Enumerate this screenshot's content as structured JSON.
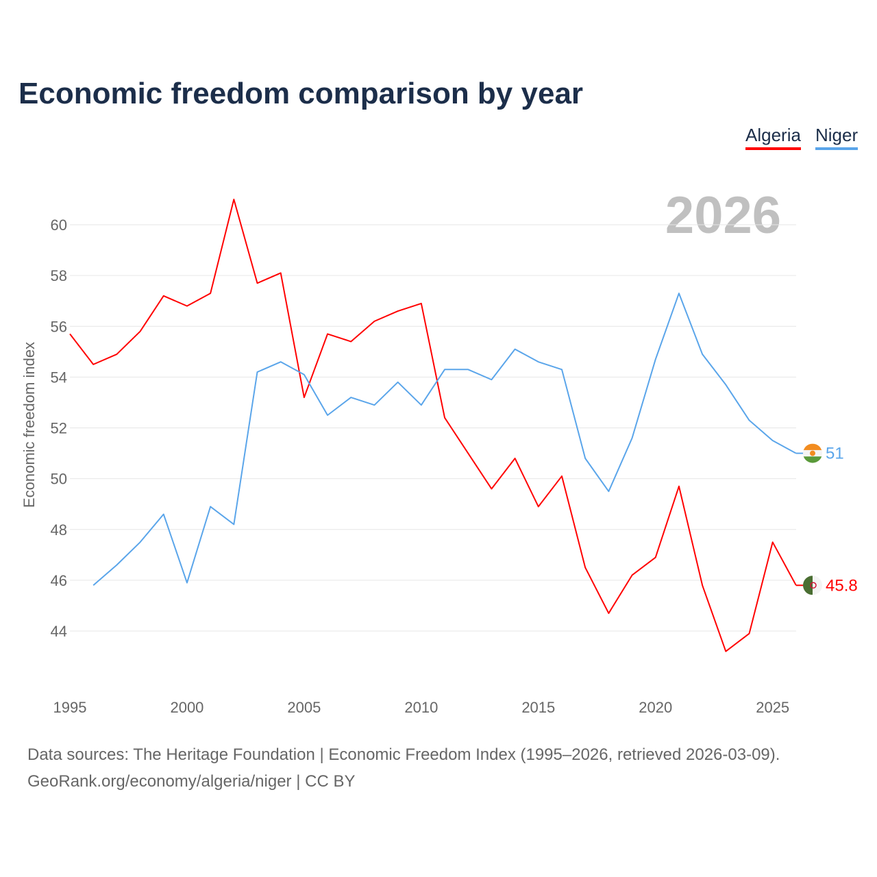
{
  "title": "Economic freedom comparison by year",
  "legend": [
    {
      "name": "Algeria",
      "color": "#ff0000"
    },
    {
      "name": "Niger",
      "color": "#5aa5ea"
    }
  ],
  "year_label": "2026",
  "source_line1": "Data sources: The Heritage Foundation | Economic Freedom Index (1995–2026, retrieved 2026-03-09).",
  "source_line2": "GeoRank.org/economy/algeria/niger | CC BY",
  "chart_data": {
    "type": "line",
    "title": "Economic freedom comparison by year",
    "xlabel": "",
    "ylabel": "Economic freedom index",
    "xlim": [
      1995,
      2026
    ],
    "ylim": [
      42.5,
      61.5
    ],
    "yticks": [
      44,
      46,
      48,
      50,
      52,
      54,
      56,
      58,
      60
    ],
    "xticks": [
      1995,
      2000,
      2005,
      2010,
      2015,
      2020,
      2025
    ],
    "grid": true,
    "legend_position": "top-right",
    "series": [
      {
        "name": "Algeria",
        "color": "#ff0000",
        "end_label": "45.8",
        "x": [
          1995,
          1996,
          1997,
          1998,
          1999,
          2000,
          2001,
          2002,
          2003,
          2004,
          2005,
          2006,
          2007,
          2008,
          2009,
          2010,
          2011,
          2012,
          2013,
          2014,
          2015,
          2016,
          2017,
          2018,
          2019,
          2020,
          2021,
          2022,
          2023,
          2024,
          2025,
          2026
        ],
        "values": [
          55.7,
          54.5,
          54.9,
          55.8,
          57.2,
          56.8,
          57.3,
          61.0,
          57.7,
          58.1,
          53.2,
          55.7,
          55.4,
          56.2,
          56.6,
          56.9,
          52.4,
          51.0,
          49.6,
          50.8,
          48.9,
          50.1,
          46.5,
          44.7,
          46.2,
          46.9,
          49.7,
          45.8,
          43.2,
          43.9,
          47.5,
          45.8
        ]
      },
      {
        "name": "Niger",
        "color": "#5aa5ea",
        "end_label": "51",
        "x": [
          1996,
          1997,
          1998,
          1999,
          2000,
          2001,
          2002,
          2003,
          2004,
          2005,
          2006,
          2007,
          2008,
          2009,
          2010,
          2011,
          2012,
          2013,
          2014,
          2015,
          2016,
          2017,
          2018,
          2019,
          2020,
          2021,
          2022,
          2023,
          2024,
          2025,
          2026
        ],
        "values": [
          45.8,
          46.6,
          47.5,
          48.6,
          45.9,
          48.9,
          48.2,
          54.2,
          54.6,
          54.1,
          52.5,
          53.2,
          52.9,
          53.8,
          52.9,
          54.3,
          54.3,
          53.9,
          55.1,
          54.6,
          54.3,
          50.8,
          49.5,
          51.6,
          54.7,
          57.3,
          54.9,
          53.7,
          52.3,
          51.5,
          51.0
        ]
      }
    ]
  }
}
